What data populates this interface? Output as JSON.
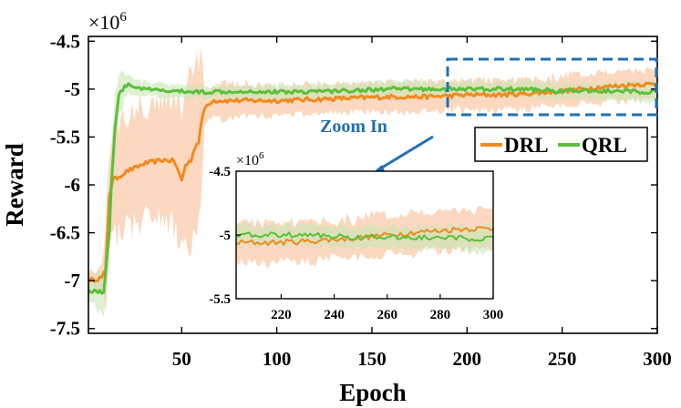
{
  "chart_data": {
    "type": "line",
    "title": "",
    "xlabel": "Epoch",
    "ylabel": "Reward",
    "y_multiplier": "×10",
    "y_multiplier_exp": "6",
    "xlim": [
      1,
      300
    ],
    "ylim": [
      -7.55,
      -4.45
    ],
    "xticks": [
      50,
      100,
      150,
      200,
      250,
      300
    ],
    "xtick_labels": [
      "50",
      "100",
      "150",
      "200",
      "250",
      "300"
    ],
    "yticks": [
      -4.5,
      -5,
      -5.5,
      -6,
      -6.5,
      -7,
      -7.5
    ],
    "ytick_labels": [
      "-4.5",
      "-5",
      "-5.5",
      "-6",
      "-6.5",
      "-7",
      "-7.5"
    ],
    "series": [
      {
        "name": "DRL",
        "color": "#F08A1E",
        "band_color": "#FAC9A6",
        "anchors_x": [
          1,
          8,
          10,
          12,
          14,
          18,
          22,
          26,
          30,
          35,
          40,
          46,
          50,
          52,
          55,
          57,
          59,
          60,
          62,
          66,
          80,
          100,
          130,
          160,
          180,
          200,
          215,
          230,
          250,
          270,
          290,
          300
        ],
        "anchors_y": [
          -7.0,
          -6.97,
          -6.9,
          -6.1,
          -5.95,
          -5.9,
          -5.85,
          -5.82,
          -5.78,
          -5.76,
          -5.74,
          -5.75,
          -5.95,
          -5.8,
          -5.74,
          -5.6,
          -5.55,
          -5.4,
          -5.2,
          -5.12,
          -5.12,
          -5.12,
          -5.1,
          -5.08,
          -5.08,
          -5.06,
          -5.06,
          -5.05,
          -5.02,
          -4.98,
          -4.95,
          -4.95
        ],
        "band_half_width": [
          0.08,
          0.12,
          0.4,
          0.6,
          0.6,
          0.65,
          0.85,
          0.9,
          0.2,
          0.15,
          0.15,
          0.15,
          0.15
        ],
        "band_knots_x": [
          1,
          8,
          10,
          15,
          30,
          45,
          55,
          60,
          62,
          100,
          200,
          250,
          300
        ]
      },
      {
        "name": "QRL",
        "color": "#5CBF3A",
        "band_color": "#C8E6B7",
        "anchors_x": [
          1,
          9,
          12,
          13,
          15,
          17,
          19,
          21,
          25,
          30,
          40,
          60,
          80,
          100,
          130,
          160,
          200,
          230,
          250,
          270,
          300
        ],
        "anchors_y": [
          -7.1,
          -7.12,
          -6.5,
          -6.0,
          -5.4,
          -5.05,
          -5.0,
          -4.96,
          -4.97,
          -5.0,
          -5.02,
          -5.03,
          -5.02,
          -5.03,
          -5.02,
          -5.0,
          -5.0,
          -5.0,
          -5.02,
          -5.02,
          -5.03
        ],
        "band_half_width": [
          0.1,
          0.25,
          0.35,
          0.08,
          0.06,
          0.08,
          0.08,
          0.1
        ],
        "band_knots_x": [
          1,
          10,
          15,
          22,
          60,
          150,
          250,
          300
        ]
      }
    ],
    "legend": {
      "position": "right",
      "entries": [
        "DRL",
        "QRL"
      ]
    },
    "annotations": [
      {
        "text": "Zoom In",
        "color": "#1F6FB5",
        "target": "inset"
      }
    ],
    "zoom_region": {
      "x": [
        203,
        300
      ],
      "y": [
        -5.25,
        -4.75
      ],
      "color": "#1F6FB5"
    },
    "inset": {
      "xlim": [
        203,
        300
      ],
      "ylim": [
        -5.5,
        -4.5
      ],
      "xticks": [
        220,
        240,
        260,
        280,
        300
      ],
      "xtick_labels": [
        "220",
        "240",
        "260",
        "280",
        "300"
      ],
      "yticks": [
        -4.5,
        -5,
        -5.5
      ],
      "ytick_labels": [
        "-4.5",
        "-5",
        "-5.5"
      ],
      "y_multiplier": "×10",
      "y_multiplier_exp": "6"
    }
  }
}
